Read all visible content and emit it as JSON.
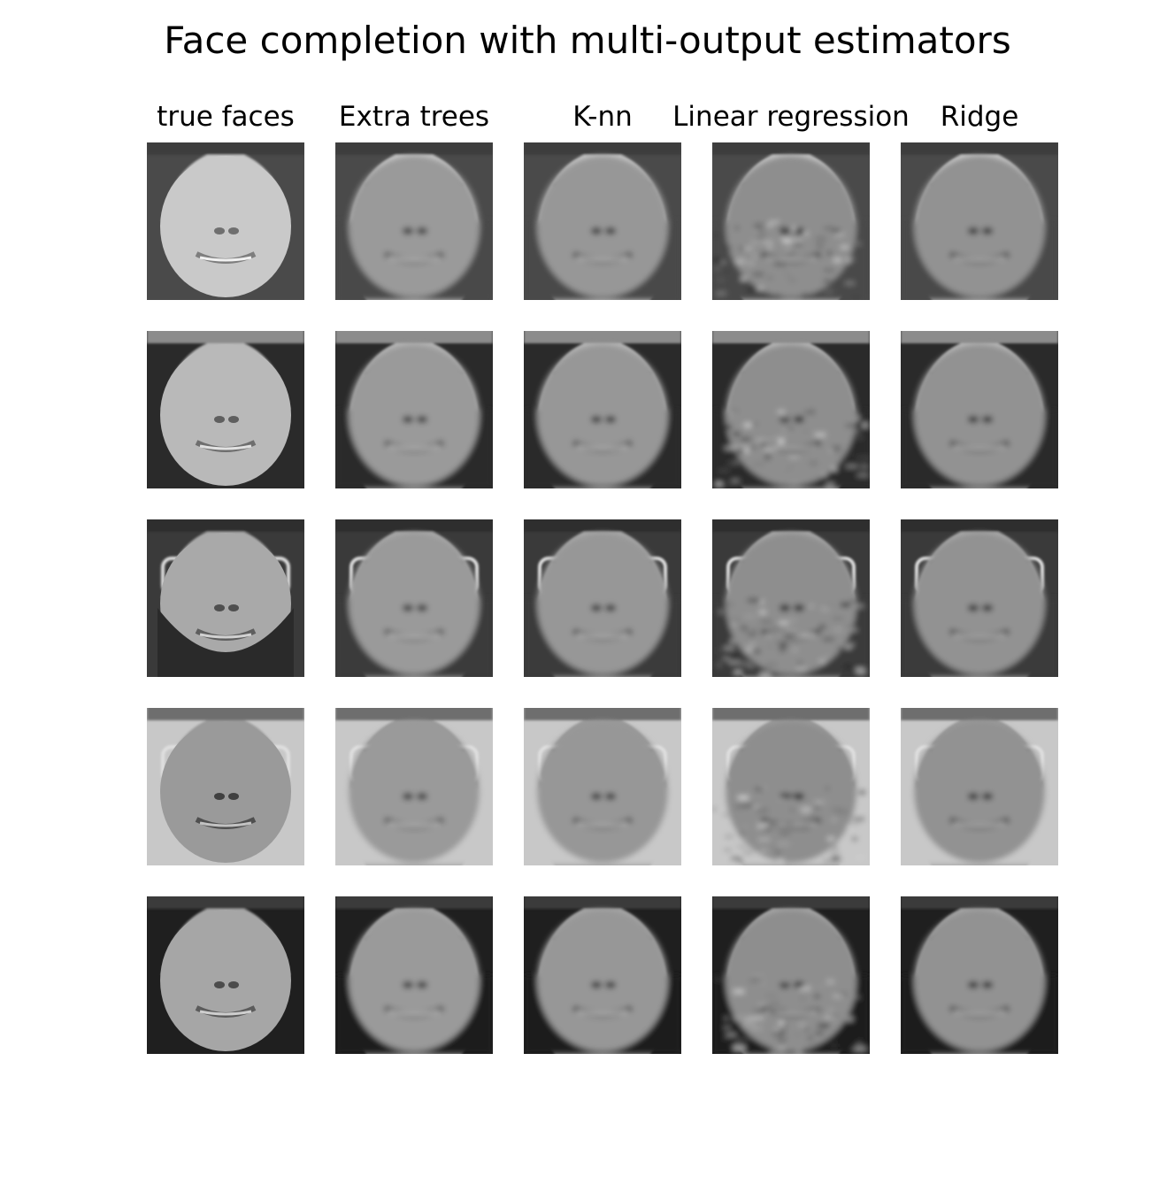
{
  "figure": {
    "title": "Face completion with multi-output estimators"
  },
  "columns": [
    {
      "key": "true",
      "label": "true faces"
    },
    {
      "key": "extra",
      "label": "Extra trees"
    },
    {
      "key": "knn",
      "label": "K-nn"
    },
    {
      "key": "linear",
      "label": "Linear regression"
    },
    {
      "key": "ridge",
      "label": "Ridge"
    }
  ],
  "faces": [
    {
      "subject": "woman-smiling",
      "skin": "#c9c9c9",
      "background": "#4a4a4a",
      "hair": "#3d3d3d",
      "glasses": false,
      "beard": false
    },
    {
      "subject": "man-short-hair",
      "skin": "#b9b9b9",
      "background": "#2a2a2a",
      "hair": "#8c8c8c",
      "glasses": false,
      "beard": false
    },
    {
      "subject": "man-glasses-beard",
      "skin": "#a9a9a9",
      "background": "#3a3a3a",
      "hair": "#2f2f2f",
      "glasses": true,
      "beard": true
    },
    {
      "subject": "man-large-glasses",
      "skin": "#9a9a9a",
      "background": "#c8c8c8",
      "hair": "#6e6e6e",
      "glasses": true,
      "beard": false
    },
    {
      "subject": "man-tilted-head",
      "skin": "#a6a6a6",
      "background": "#1f1f1f",
      "hair": "#3a3a3a",
      "glasses": false,
      "beard": false
    }
  ],
  "methods": {
    "true": {
      "lower": "original",
      "tone": "#b0b0b0",
      "noise": false
    },
    "extra": {
      "lower": "blurred",
      "tone": "#9a9a9a",
      "noise": false
    },
    "knn": {
      "lower": "blurred",
      "tone": "#979797",
      "noise": false
    },
    "linear": {
      "lower": "noisy",
      "tone": "#8e8e8e",
      "noise": true
    },
    "ridge": {
      "lower": "blurred",
      "tone": "#929292",
      "noise": false
    }
  }
}
